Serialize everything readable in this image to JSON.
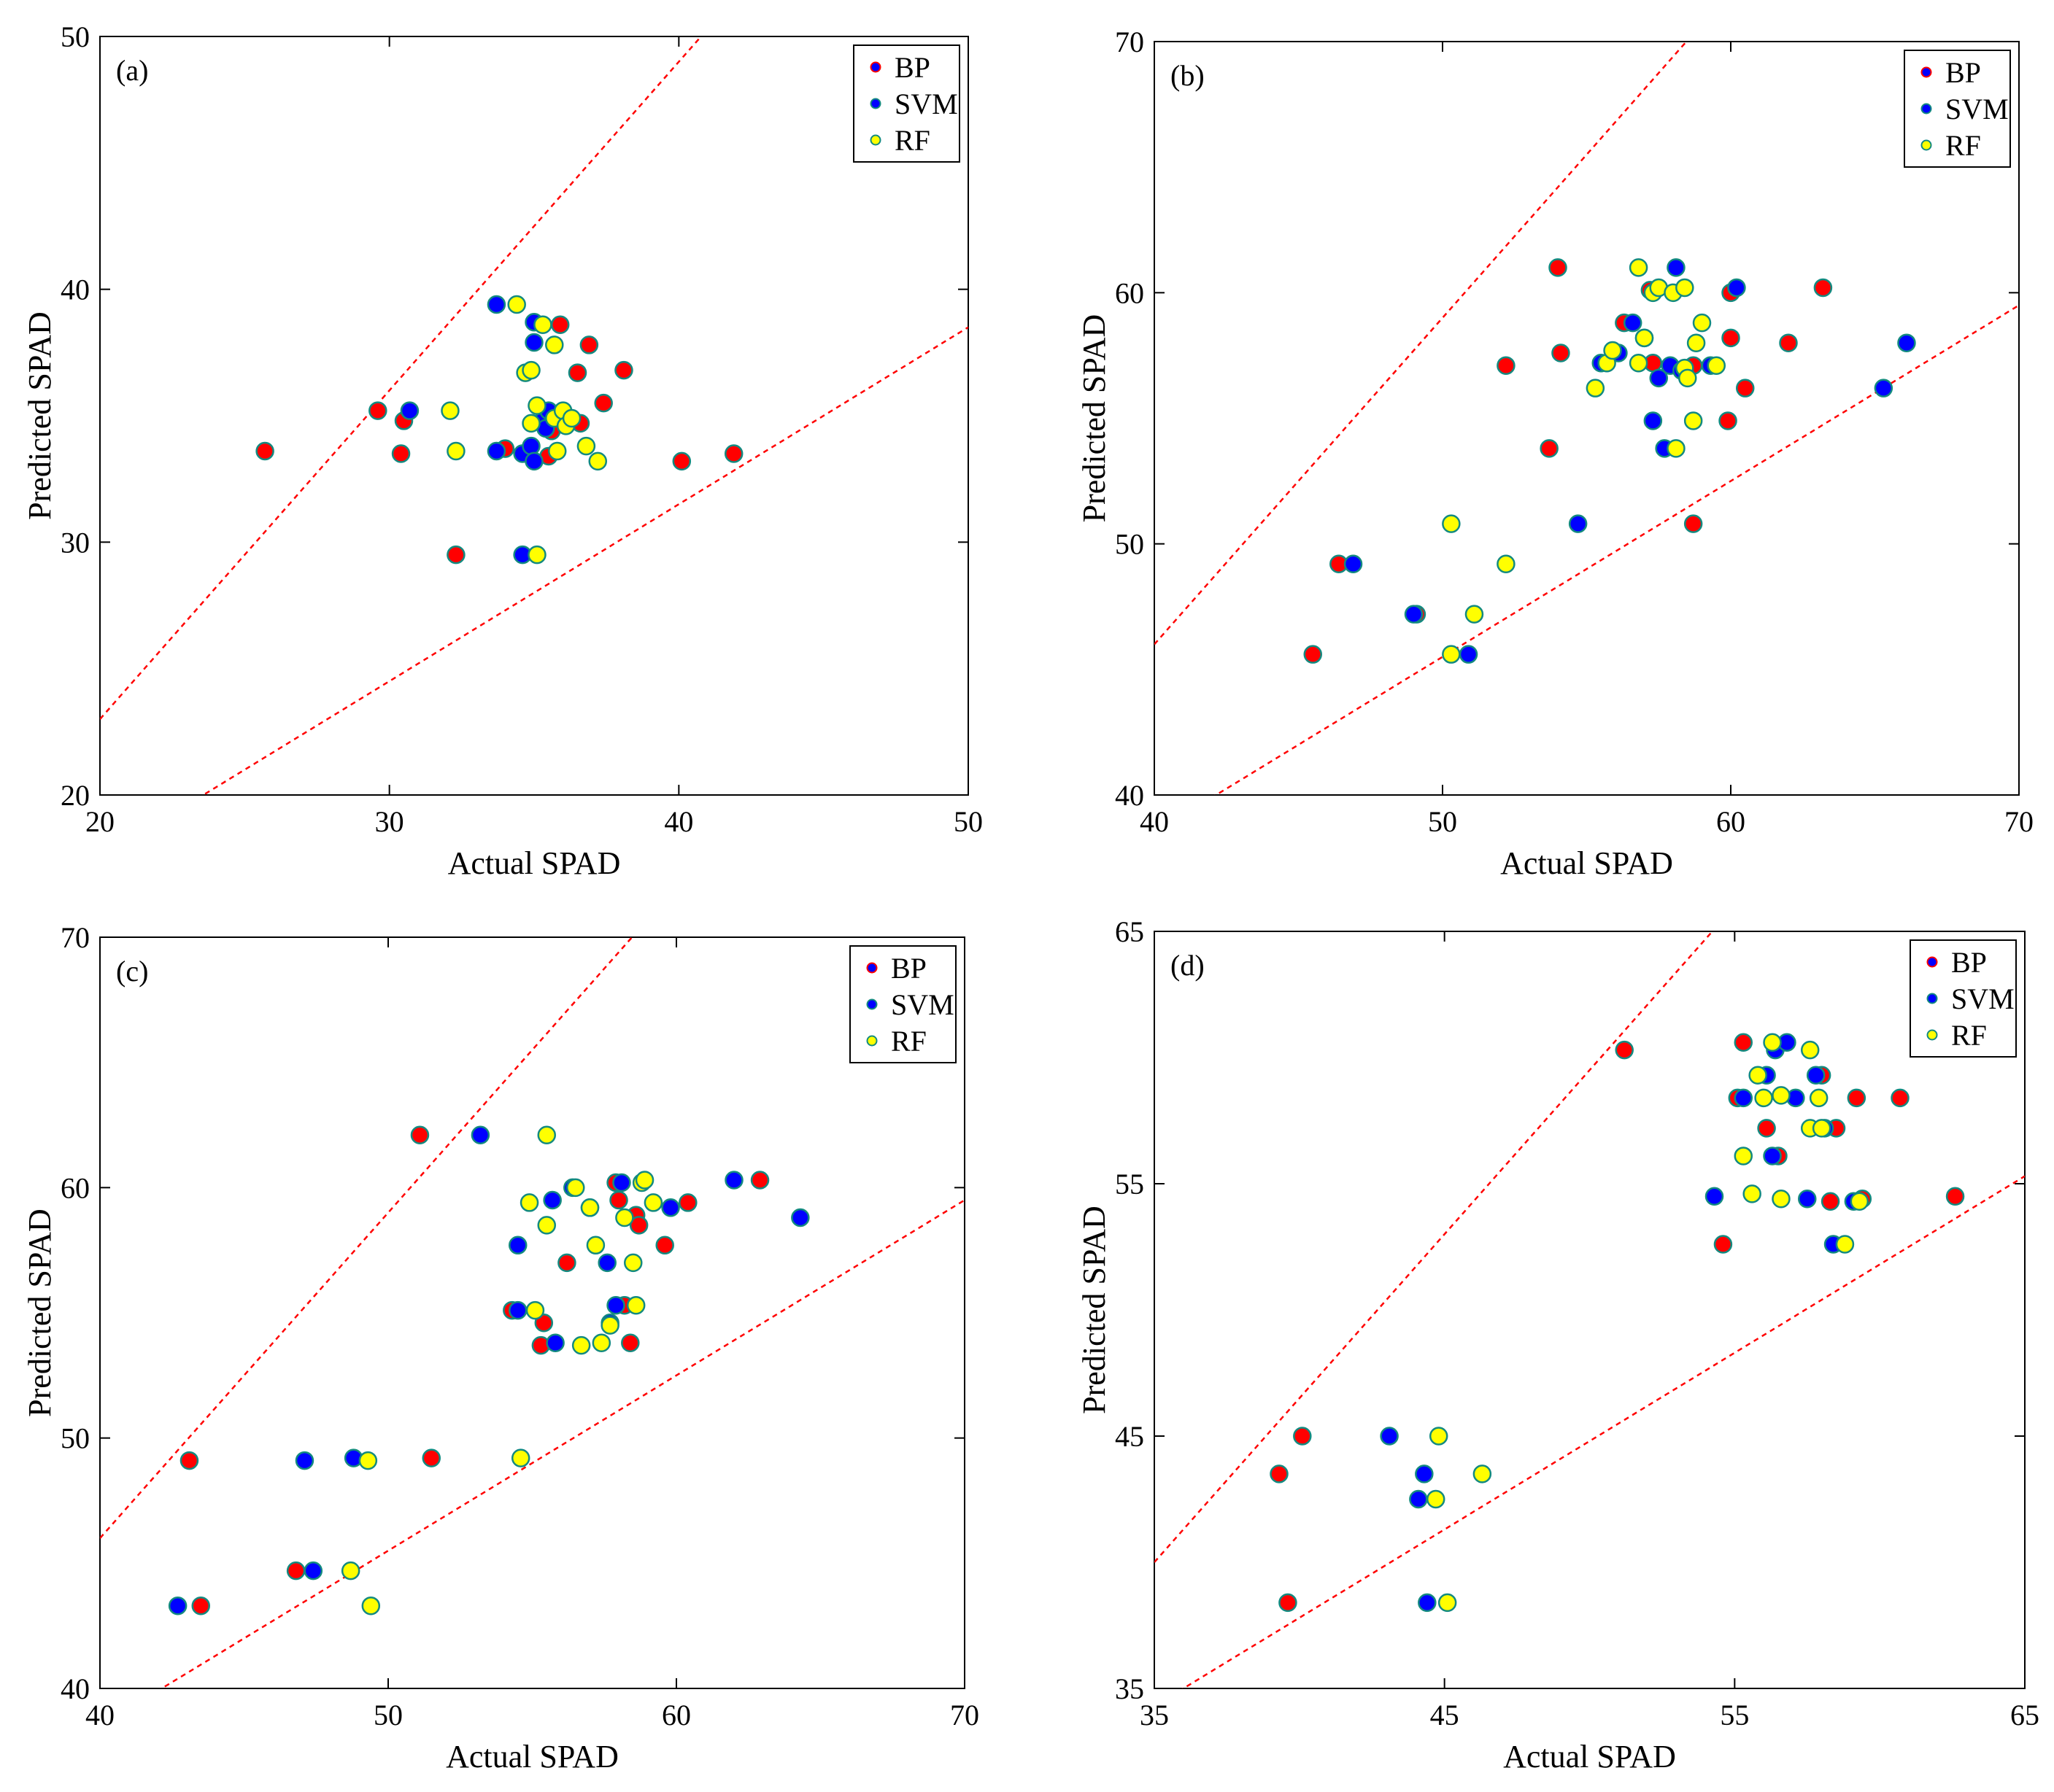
{
  "chart_data": [
    {
      "type": "scatter",
      "panel_label": "(a)",
      "xlabel": "Actual SPAD",
      "ylabel": "Predicted SPAD",
      "xlim": [
        20,
        50
      ],
      "ylim": [
        20,
        50
      ],
      "xticks": [
        20,
        30,
        40,
        50
      ],
      "yticks": [
        20,
        30,
        40,
        50
      ],
      "xtick_labels": [
        "20",
        "30",
        "40",
        "50"
      ],
      "ytick_labels": [
        "20",
        "30",
        "40",
        "50"
      ],
      "bounds": [
        {
          "slope": 1.3,
          "intercept": -3
        },
        {
          "slope": 0.7,
          "intercept": 3.5
        }
      ],
      "legend": [
        "BP",
        "SVM",
        "RF"
      ],
      "series": [
        {
          "name": "BP",
          "color": "#ff0000",
          "points": [
            [
              25.7,
              33.6
            ],
            [
              29.6,
              35.2
            ],
            [
              30.4,
              33.5
            ],
            [
              30.5,
              34.8
            ],
            [
              32.3,
              29.5
            ],
            [
              34.0,
              33.7
            ],
            [
              35.5,
              33.4
            ],
            [
              35.6,
              34.4
            ],
            [
              35.9,
              38.6
            ],
            [
              36.5,
              36.7
            ],
            [
              36.6,
              34.7
            ],
            [
              36.9,
              37.8
            ],
            [
              37.4,
              35.5
            ],
            [
              38.1,
              36.8
            ],
            [
              40.1,
              33.2
            ],
            [
              41.9,
              33.5
            ]
          ]
        },
        {
          "name": "SVM",
          "color": "#0000ff",
          "points": [
            [
              30.7,
              35.2
            ],
            [
              33.7,
              39.4
            ],
            [
              33.7,
              33.6
            ],
            [
              34.6,
              33.5
            ],
            [
              34.6,
              29.5
            ],
            [
              34.9,
              33.8
            ],
            [
              35.0,
              38.7
            ],
            [
              35.0,
              37.9
            ],
            [
              35.0,
              33.2
            ],
            [
              35.3,
              34.8
            ],
            [
              35.4,
              34.5
            ],
            [
              35.5,
              35.2
            ]
          ]
        },
        {
          "name": "RF",
          "color": "#ffff00",
          "points": [
            [
              32.1,
              35.2
            ],
            [
              32.3,
              33.6
            ],
            [
              34.4,
              39.4
            ],
            [
              34.7,
              36.7
            ],
            [
              34.9,
              36.8
            ],
            [
              34.9,
              34.7
            ],
            [
              35.1,
              35.4
            ],
            [
              35.1,
              29.5
            ],
            [
              35.3,
              38.6
            ],
            [
              35.7,
              37.8
            ],
            [
              35.7,
              34.9
            ],
            [
              35.8,
              33.6
            ],
            [
              36.0,
              35.2
            ],
            [
              36.1,
              34.6
            ],
            [
              36.3,
              34.9
            ],
            [
              36.8,
              33.8
            ],
            [
              37.2,
              33.2
            ]
          ]
        }
      ]
    },
    {
      "type": "scatter",
      "panel_label": "(b)",
      "xlabel": "Actual SPAD",
      "ylabel": "Predicted SPAD",
      "xlim": [
        40,
        70
      ],
      "ylim": [
        40,
        70
      ],
      "xticks": [
        40,
        50,
        60,
        70
      ],
      "yticks": [
        40,
        50,
        60,
        70
      ],
      "xtick_labels": [
        "40",
        "50",
        "60",
        "70"
      ],
      "ytick_labels": [
        "40",
        "50",
        "60",
        "70"
      ],
      "bounds": [
        {
          "slope": 1.3,
          "intercept": -6
        },
        {
          "slope": 0.7,
          "intercept": 10.5
        }
      ],
      "legend": [
        "BP",
        "SVM",
        "RF"
      ],
      "series": [
        {
          "name": "BP",
          "color": "#ff0000",
          "points": [
            [
              45.5,
              45.6
            ],
            [
              46.4,
              49.2
            ],
            [
              49.1,
              47.2
            ],
            [
              52.2,
              57.1
            ],
            [
              53.7,
              53.8
            ],
            [
              54.0,
              61.0
            ],
            [
              54.1,
              57.6
            ],
            [
              56.3,
              58.8
            ],
            [
              57.2,
              60.1
            ],
            [
              57.3,
              57.2
            ],
            [
              58.7,
              57.1
            ],
            [
              58.7,
              50.8
            ],
            [
              59.9,
              54.9
            ],
            [
              60.0,
              60.0
            ],
            [
              60.0,
              58.2
            ],
            [
              60.5,
              56.2
            ],
            [
              62.0,
              58.0
            ],
            [
              63.2,
              60.2
            ]
          ]
        },
        {
          "name": "SVM",
          "color": "#0000ff",
          "points": [
            [
              46.9,
              49.2
            ],
            [
              49.0,
              47.2
            ],
            [
              50.9,
              45.6
            ],
            [
              54.7,
              50.8
            ],
            [
              55.5,
              57.2
            ],
            [
              56.1,
              57.6
            ],
            [
              56.6,
              58.8
            ],
            [
              57.0,
              58.2
            ],
            [
              57.3,
              54.9
            ],
            [
              57.5,
              56.6
            ],
            [
              57.7,
              53.8
            ],
            [
              57.9,
              57.1
            ],
            [
              58.1,
              61.0
            ],
            [
              58.3,
              56.9
            ],
            [
              59.3,
              57.1
            ],
            [
              60.2,
              60.2
            ],
            [
              65.3,
              56.2
            ],
            [
              66.1,
              58.0
            ]
          ]
        },
        {
          "name": "RF",
          "color": "#ffff00",
          "points": [
            [
              50.3,
              50.8
            ],
            [
              50.3,
              45.6
            ],
            [
              51.1,
              47.2
            ],
            [
              52.2,
              49.2
            ],
            [
              55.3,
              56.2
            ],
            [
              55.7,
              57.2
            ],
            [
              55.9,
              57.7
            ],
            [
              56.8,
              57.2
            ],
            [
              56.8,
              61.0
            ],
            [
              57.0,
              58.2
            ],
            [
              57.3,
              60.0
            ],
            [
              57.5,
              60.2
            ],
            [
              58.0,
              60.0
            ],
            [
              58.1,
              53.8
            ],
            [
              58.4,
              60.2
            ],
            [
              58.4,
              57.0
            ],
            [
              58.5,
              56.6
            ],
            [
              58.7,
              54.9
            ],
            [
              58.8,
              58.0
            ],
            [
              59.0,
              58.8
            ],
            [
              59.5,
              57.1
            ]
          ]
        }
      ]
    },
    {
      "type": "scatter",
      "panel_label": "(c)",
      "xlabel": "Actual SPAD",
      "ylabel": "Predicted SPAD",
      "xlim": [
        40,
        70
      ],
      "ylim": [
        40,
        70
      ],
      "xticks": [
        40,
        50,
        60,
        70
      ],
      "yticks": [
        40,
        50,
        60,
        70
      ],
      "xtick_labels": [
        "40",
        "50",
        "60",
        "70"
      ],
      "ytick_labels": [
        "40",
        "50",
        "60",
        "70"
      ],
      "bounds": [
        {
          "slope": 1.3,
          "intercept": -6
        },
        {
          "slope": 0.7,
          "intercept": 10.5
        }
      ],
      "legend": [
        "BP",
        "SVM",
        "RF"
      ],
      "series": [
        {
          "name": "BP",
          "color": "#ff0000",
          "points": [
            [
              43.1,
              49.1
            ],
            [
              43.5,
              43.3
            ],
            [
              46.8,
              44.7
            ],
            [
              51.1,
              62.1
            ],
            [
              51.5,
              49.2
            ],
            [
              54.3,
              55.1
            ],
            [
              55.4,
              54.6
            ],
            [
              55.3,
              53.7
            ],
            [
              56.2,
              57.0
            ],
            [
              57.9,
              60.2
            ],
            [
              58.0,
              59.5
            ],
            [
              58.2,
              55.3
            ],
            [
              58.4,
              53.8
            ],
            [
              58.6,
              58.9
            ],
            [
              58.7,
              58.5
            ],
            [
              59.6,
              57.7
            ],
            [
              60.4,
              59.4
            ],
            [
              62.9,
              60.3
            ]
          ]
        },
        {
          "name": "SVM",
          "color": "#0000ff",
          "points": [
            [
              42.7,
              43.3
            ],
            [
              47.1,
              49.1
            ],
            [
              47.4,
              44.7
            ],
            [
              48.8,
              49.2
            ],
            [
              53.2,
              62.1
            ],
            [
              54.5,
              55.1
            ],
            [
              54.5,
              57.7
            ],
            [
              55.7,
              59.5
            ],
            [
              55.8,
              53.8
            ],
            [
              56.4,
              60.0
            ],
            [
              57.0,
              59.2
            ],
            [
              57.6,
              57.0
            ],
            [
              57.7,
              54.6
            ],
            [
              57.9,
              55.3
            ],
            [
              58.1,
              60.2
            ],
            [
              59.8,
              59.2
            ],
            [
              62.0,
              60.3
            ],
            [
              64.3,
              58.8
            ]
          ]
        },
        {
          "name": "RF",
          "color": "#ffff00",
          "points": [
            [
              48.7,
              44.7
            ],
            [
              49.3,
              49.1
            ],
            [
              49.4,
              43.3
            ],
            [
              54.6,
              49.2
            ],
            [
              54.9,
              59.4
            ],
            [
              55.1,
              55.1
            ],
            [
              55.5,
              62.1
            ],
            [
              55.5,
              58.5
            ],
            [
              56.5,
              60.0
            ],
            [
              56.7,
              53.7
            ],
            [
              57.0,
              59.2
            ],
            [
              57.2,
              57.7
            ],
            [
              57.4,
              53.8
            ],
            [
              57.7,
              54.5
            ],
            [
              58.2,
              58.8
            ],
            [
              58.5,
              57.0
            ],
            [
              58.6,
              55.3
            ],
            [
              58.8,
              60.2
            ],
            [
              58.9,
              60.3
            ],
            [
              59.2,
              59.4
            ]
          ]
        }
      ]
    },
    {
      "type": "scatter",
      "panel_label": "(d)",
      "xlabel": "Actual SPAD",
      "ylabel": "Predicted SPAD",
      "xlim": [
        35,
        65
      ],
      "ylim": [
        35,
        65
      ],
      "xticks": [
        35,
        45,
        55,
        65
      ],
      "yticks": [
        35,
        45,
        55,
        65
      ],
      "xtick_labels": [
        "35",
        "45",
        "55",
        "65"
      ],
      "ytick_labels": [
        "35",
        "45",
        "55",
        "65"
      ],
      "bounds": [
        {
          "slope": 1.3,
          "intercept": -5.5
        },
        {
          "slope": 0.7,
          "intercept": 9.8
        }
      ],
      "legend": [
        "BP",
        "SVM",
        "RF"
      ],
      "series": [
        {
          "name": "BP",
          "color": "#ff0000",
          "points": [
            [
              39.3,
              43.5
            ],
            [
              39.6,
              38.4
            ],
            [
              40.1,
              45.0
            ],
            [
              51.2,
              60.3
            ],
            [
              54.6,
              52.6
            ],
            [
              55.1,
              58.4
            ],
            [
              55.3,
              60.6
            ],
            [
              56.1,
              57.2
            ],
            [
              56.5,
              56.1
            ],
            [
              58.0,
              59.3
            ],
            [
              58.3,
              54.3
            ],
            [
              58.5,
              57.2
            ],
            [
              59.2,
              58.4
            ],
            [
              59.4,
              54.4
            ],
            [
              60.7,
              58.4
            ],
            [
              62.6,
              54.5
            ]
          ]
        },
        {
          "name": "SVM",
          "color": "#0000ff",
          "points": [
            [
              43.1,
              45.0
            ],
            [
              44.1,
              42.5
            ],
            [
              44.3,
              43.5
            ],
            [
              44.4,
              38.4
            ],
            [
              54.3,
              54.5
            ],
            [
              55.3,
              58.4
            ],
            [
              56.1,
              59.3
            ],
            [
              56.3,
              56.1
            ],
            [
              56.4,
              60.3
            ],
            [
              56.8,
              60.6
            ],
            [
              57.1,
              58.4
            ],
            [
              57.5,
              54.4
            ],
            [
              57.8,
              59.3
            ],
            [
              58.1,
              57.2
            ],
            [
              58.4,
              52.6
            ],
            [
              59.1,
              54.3
            ]
          ]
        },
        {
          "name": "RF",
          "color": "#ffff00",
          "points": [
            [
              44.7,
              42.5
            ],
            [
              44.8,
              45.0
            ],
            [
              45.1,
              38.4
            ],
            [
              46.3,
              43.5
            ],
            [
              55.3,
              56.1
            ],
            [
              55.6,
              54.6
            ],
            [
              55.8,
              59.3
            ],
            [
              56.0,
              58.4
            ],
            [
              56.3,
              60.6
            ],
            [
              56.6,
              58.5
            ],
            [
              56.6,
              54.4
            ],
            [
              57.6,
              57.2
            ],
            [
              57.6,
              60.3
            ],
            [
              57.9,
              58.4
            ],
            [
              58.0,
              57.2
            ],
            [
              58.8,
              52.6
            ],
            [
              59.3,
              54.3
            ]
          ]
        }
      ]
    }
  ]
}
